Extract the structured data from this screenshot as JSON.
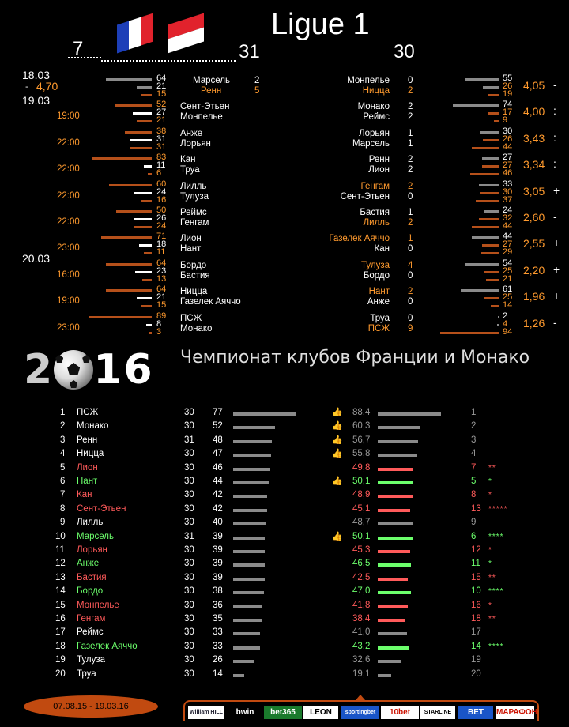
{
  "title": "Ligue 1",
  "left_round": "7",
  "mid_round": "31",
  "right_round": "30",
  "dates": [
    {
      "label": "18.03",
      "sub": "-",
      "odd": "4,70"
    },
    {
      "label": "19.03"
    },
    {
      "label": "20.03"
    }
  ],
  "matches": [
    {
      "time": "",
      "lbars": [
        "64",
        "21",
        "15"
      ],
      "home": "Марсель",
      "away": "Ренн",
      "hs": "2",
      "as": "5",
      "home_c": "white",
      "away_c": "orange",
      "rhome": "Монпелье",
      "raway": "Ницца",
      "rhs": "0",
      "ras": "2",
      "rhome_c": "white",
      "raway_c": "orange",
      "rbars": [
        "55",
        "26",
        "19"
      ],
      "odd": "4,05",
      "res": "-"
    },
    {
      "time": "19:00",
      "lbars": [
        "52",
        "27",
        "21"
      ],
      "home": "Сент-Этьен",
      "away": "Монпелье",
      "hs": "",
      "as": "",
      "home_c": "white",
      "away_c": "white",
      "rhome": "Монако",
      "raway": "Реймс",
      "rhs": "2",
      "ras": "2",
      "rhome_c": "white",
      "raway_c": "white",
      "rbars": [
        "74",
        "17",
        "9"
      ],
      "odd": "4,00",
      "res": ":"
    },
    {
      "time": "22:00",
      "lbars": [
        "38",
        "31",
        "31"
      ],
      "home": "Анже",
      "away": "Лорьян",
      "hs": "",
      "as": "",
      "home_c": "white",
      "away_c": "white",
      "rhome": "Лорьян",
      "raway": "Марсель",
      "rhs": "1",
      "ras": "1",
      "rhome_c": "white",
      "raway_c": "white",
      "rbars": [
        "30",
        "26",
        "44"
      ],
      "odd": "3,43",
      "res": ":"
    },
    {
      "time": "22:00",
      "lbars": [
        "83",
        "11",
        "6"
      ],
      "home": "Кан",
      "away": "Труа",
      "hs": "",
      "as": "",
      "home_c": "white",
      "away_c": "white",
      "rhome": "Ренн",
      "raway": "Лион",
      "rhs": "2",
      "ras": "2",
      "rhome_c": "white",
      "raway_c": "white",
      "rbars": [
        "27",
        "27",
        "46"
      ],
      "odd": "3,34",
      "res": ":"
    },
    {
      "time": "22:00",
      "lbars": [
        "60",
        "24",
        "16"
      ],
      "home": "Лилль",
      "away": "Тулуза",
      "hs": "",
      "as": "",
      "home_c": "white",
      "away_c": "white",
      "rhome": "Генгам",
      "raway": "Сент-Этьен",
      "rhs": "2",
      "ras": "0",
      "rhome_c": "orange",
      "raway_c": "white",
      "rbars": [
        "33",
        "30",
        "37"
      ],
      "odd": "3,05",
      "res": "+"
    },
    {
      "time": "22:00",
      "lbars": [
        "50",
        "26",
        "24"
      ],
      "home": "Реймс",
      "away": "Генгам",
      "hs": "",
      "as": "",
      "home_c": "white",
      "away_c": "white",
      "rhome": "Бастия",
      "raway": "Лилль",
      "rhs": "1",
      "ras": "2",
      "rhome_c": "white",
      "raway_c": "orange",
      "rbars": [
        "24",
        "32",
        "44"
      ],
      "odd": "2,60",
      "res": "-"
    },
    {
      "time": "23:00",
      "lbars": [
        "71",
        "18",
        "11"
      ],
      "home": "Лион",
      "away": "Нант",
      "hs": "",
      "as": "",
      "home_c": "white",
      "away_c": "white",
      "rhome": "Газелек Аяччо",
      "raway": "Кан",
      "rhs": "1",
      "ras": "0",
      "rhome_c": "orange",
      "raway_c": "white",
      "rbars": [
        "44",
        "27",
        "29"
      ],
      "odd": "2,55",
      "res": "+"
    },
    {
      "time": "16:00",
      "lbars": [
        "64",
        "23",
        "13"
      ],
      "home": "Бордо",
      "away": "Бастия",
      "hs": "",
      "as": "",
      "home_c": "white",
      "away_c": "white",
      "rhome": "Тулуза",
      "raway": "Бордо",
      "rhs": "4",
      "ras": "0",
      "rhome_c": "orange",
      "raway_c": "white",
      "rbars": [
        "54",
        "25",
        "21"
      ],
      "odd": "2,20",
      "res": "+"
    },
    {
      "time": "19:00",
      "lbars": [
        "64",
        "21",
        "15"
      ],
      "home": "Ницца",
      "away": "Газелек Аяччо",
      "hs": "",
      "as": "",
      "home_c": "white",
      "away_c": "white",
      "rhome": "Нант",
      "raway": "Анже",
      "rhs": "2",
      "ras": "0",
      "rhome_c": "orange",
      "raway_c": "white",
      "rbars": [
        "61",
        "25",
        "14"
      ],
      "odd": "1,96",
      "res": "+"
    },
    {
      "time": "23:00",
      "lbars": [
        "89",
        "8",
        "3"
      ],
      "home": "ПСЖ",
      "away": "Монако",
      "hs": "",
      "as": "",
      "home_c": "white",
      "away_c": "white",
      "rhome": "Труа",
      "raway": "ПСЖ",
      "rhs": "0",
      "ras": "9",
      "rhome_c": "white",
      "raway_c": "orange",
      "rbars": [
        "2",
        "4",
        "94"
      ],
      "odd": "1,26",
      "res": "-"
    }
  ],
  "year": "2016",
  "championship_title": "Чемпионат клубов Франции и Монако",
  "table": [
    {
      "pos": "1",
      "team": "ПСЖ",
      "c": "white",
      "g": "30",
      "pts": "77",
      "thumb": true,
      "pct": "88,4",
      "pc": "gray",
      "prev": "1",
      "pvc": "gray",
      "stars": ""
    },
    {
      "pos": "2",
      "team": "Монако",
      "c": "white",
      "g": "30",
      "pts": "52",
      "thumb": true,
      "pct": "60,3",
      "pc": "gray",
      "prev": "2",
      "pvc": "gray",
      "stars": ""
    },
    {
      "pos": "3",
      "team": "Ренн",
      "c": "white",
      "g": "31",
      "pts": "48",
      "thumb": true,
      "pct": "56,7",
      "pc": "gray",
      "prev": "3",
      "pvc": "gray",
      "stars": ""
    },
    {
      "pos": "4",
      "team": "Ницца",
      "c": "white",
      "g": "30",
      "pts": "47",
      "thumb": true,
      "pct": "55,8",
      "pc": "gray",
      "prev": "4",
      "pvc": "gray",
      "stars": ""
    },
    {
      "pos": "5",
      "team": "Лион",
      "c": "red",
      "g": "30",
      "pts": "46",
      "thumb": false,
      "pct": "49,8",
      "pc": "red",
      "prev": "7",
      "pvc": "red",
      "stars": "**"
    },
    {
      "pos": "6",
      "team": "Нант",
      "c": "green",
      "g": "30",
      "pts": "44",
      "thumb": true,
      "pct": "50,1",
      "pc": "green",
      "prev": "5",
      "pvc": "green",
      "stars": "*"
    },
    {
      "pos": "7",
      "team": "Кан",
      "c": "red",
      "g": "30",
      "pts": "42",
      "thumb": false,
      "pct": "48,9",
      "pc": "red",
      "prev": "8",
      "pvc": "red",
      "stars": "*"
    },
    {
      "pos": "8",
      "team": "Сент-Этьен",
      "c": "red",
      "g": "30",
      "pts": "42",
      "thumb": false,
      "pct": "45,1",
      "pc": "red",
      "prev": "13",
      "pvc": "red",
      "stars": "*****"
    },
    {
      "pos": "9",
      "team": "Лилль",
      "c": "white",
      "g": "30",
      "pts": "40",
      "thumb": false,
      "pct": "48,7",
      "pc": "gray",
      "prev": "9",
      "pvc": "gray",
      "stars": ""
    },
    {
      "pos": "10",
      "team": "Марсель",
      "c": "green",
      "g": "31",
      "pts": "39",
      "thumb": true,
      "pct": "50,1",
      "pc": "green",
      "prev": "6",
      "pvc": "green",
      "stars": "****"
    },
    {
      "pos": "11",
      "team": "Лорьян",
      "c": "red",
      "g": "30",
      "pts": "39",
      "thumb": false,
      "pct": "45,3",
      "pc": "red",
      "prev": "12",
      "pvc": "red",
      "stars": "*"
    },
    {
      "pos": "12",
      "team": "Анже",
      "c": "green",
      "g": "30",
      "pts": "39",
      "thumb": false,
      "pct": "46,5",
      "pc": "green",
      "prev": "11",
      "pvc": "green",
      "stars": "*"
    },
    {
      "pos": "13",
      "team": "Бастия",
      "c": "red",
      "g": "30",
      "pts": "39",
      "thumb": false,
      "pct": "42,5",
      "pc": "red",
      "prev": "15",
      "pvc": "red",
      "stars": "**"
    },
    {
      "pos": "14",
      "team": "Бордо",
      "c": "green",
      "g": "30",
      "pts": "38",
      "thumb": false,
      "pct": "47,0",
      "pc": "green",
      "prev": "10",
      "pvc": "green",
      "stars": "****"
    },
    {
      "pos": "15",
      "team": "Монпелье",
      "c": "red",
      "g": "30",
      "pts": "36",
      "thumb": false,
      "pct": "41,8",
      "pc": "red",
      "prev": "16",
      "pvc": "red",
      "stars": "*"
    },
    {
      "pos": "16",
      "team": "Генгам",
      "c": "red",
      "g": "30",
      "pts": "35",
      "thumb": false,
      "pct": "38,4",
      "pc": "red",
      "prev": "18",
      "pvc": "red",
      "stars": "**"
    },
    {
      "pos": "17",
      "team": "Реймс",
      "c": "white",
      "g": "30",
      "pts": "33",
      "thumb": false,
      "pct": "41,0",
      "pc": "gray",
      "prev": "17",
      "pvc": "gray",
      "stars": ""
    },
    {
      "pos": "18",
      "team": "Газелек Аяччо",
      "c": "green",
      "g": "30",
      "pts": "33",
      "thumb": false,
      "pct": "43,2",
      "pc": "green",
      "prev": "14",
      "pvc": "green",
      "stars": "****"
    },
    {
      "pos": "19",
      "team": "Тулуза",
      "c": "white",
      "g": "30",
      "pts": "26",
      "thumb": false,
      "pct": "32,6",
      "pc": "gray",
      "prev": "19",
      "pvc": "gray",
      "stars": ""
    },
    {
      "pos": "20",
      "team": "Труа",
      "c": "white",
      "g": "30",
      "pts": "14",
      "thumb": false,
      "pct": "19,1",
      "pc": "gray",
      "prev": "20",
      "pvc": "gray",
      "stars": ""
    }
  ],
  "period": "07.08.15 - 19.03.16",
  "bookmakers": [
    "William HILL",
    "bwin",
    "bet365",
    "LEON",
    "sportingbet",
    "10bet",
    "STARLINE",
    "BET",
    "МАРАФОН"
  ],
  "colors": {
    "orange": "#ff9a2e",
    "dark_orange": "#c14a10",
    "gray_bar": "#8a8a8a",
    "red": "#ff5a5a",
    "green": "#6cff6c"
  }
}
